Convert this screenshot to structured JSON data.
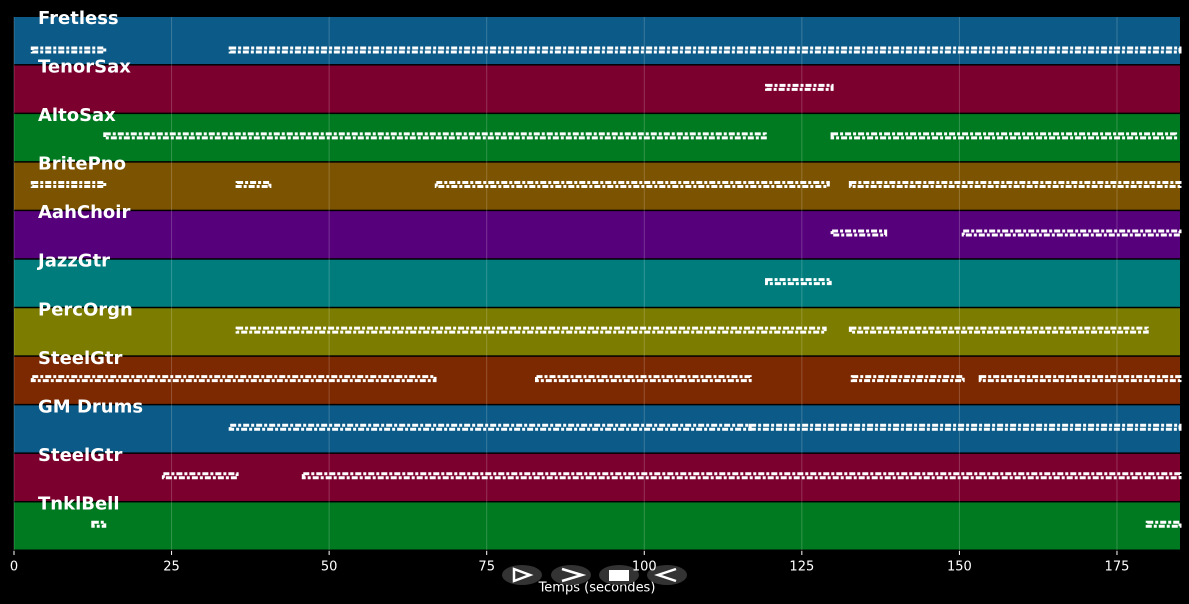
{
  "chart_data": {
    "type": "pianoroll",
    "xlabel": "Temps (secondes)",
    "xlim": [
      0,
      185
    ],
    "xticks": [
      0,
      25,
      50,
      75,
      100,
      125,
      150,
      175
    ],
    "grid": true,
    "series": [
      {
        "name": "Fretless",
        "color": "#0b5a87",
        "segments": [
          [
            2.9,
            14.4
          ],
          [
            34.3,
            185
          ]
        ]
      },
      {
        "name": "TenorSax",
        "color": "#7c002e",
        "segments": [
          [
            119.4,
            129.8
          ]
        ]
      },
      {
        "name": "AltoSax",
        "color": "#007a20",
        "segments": [
          [
            14.4,
            119.2
          ],
          [
            129.8,
            184.3
          ]
        ]
      },
      {
        "name": "BritePno",
        "color": "#7c5300",
        "segments": [
          [
            2.9,
            14.4
          ],
          [
            35.4,
            40.6
          ],
          [
            67,
            129.2
          ],
          [
            132.7,
            185
          ]
        ]
      },
      {
        "name": "AahChoir",
        "color": "#57007c",
        "segments": [
          [
            129.8,
            138.3
          ],
          [
            150.6,
            185
          ]
        ]
      },
      {
        "name": "JazzGtr",
        "color": "#007c7c",
        "segments": [
          [
            119.4,
            129.5
          ]
        ]
      },
      {
        "name": "PercOrgn",
        "color": "#7c7c00",
        "segments": [
          [
            35.4,
            128.7
          ],
          [
            132.7,
            179.8
          ]
        ]
      },
      {
        "name": "SteelGtr",
        "color": "#7c2800",
        "segments": [
          [
            2.9,
            66.8
          ],
          [
            82.9,
            116.8
          ],
          [
            133,
            150.6
          ],
          [
            153.3,
            185
          ]
        ]
      },
      {
        "name": "GM Drums",
        "color": "#0b5a87",
        "segments": [
          [
            34.3,
            116.8
          ],
          [
            116.8,
            185
          ]
        ]
      },
      {
        "name": "SteelGtr",
        "color": "#7c002e",
        "segments": [
          [
            23.7,
            35.4
          ],
          [
            45.9,
            185
          ]
        ]
      },
      {
        "name": "TnklBell",
        "color": "#007a20",
        "segments": [
          [
            12.5,
            14.4
          ],
          [
            179.8,
            185
          ]
        ]
      }
    ]
  }
}
